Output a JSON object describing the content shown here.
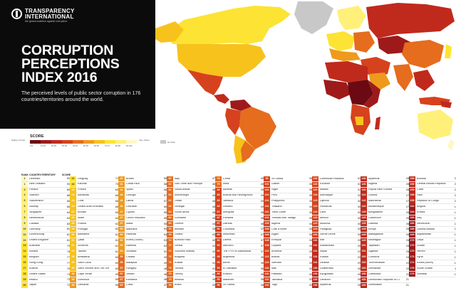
{
  "header": {
    "org_name": "TRANSPARENCY INTERNATIONAL",
    "org_name_line1": "TRANSPARENCY",
    "org_name_line2": "INTERNATIONAL",
    "org_tagline": "the global coalition against corruption",
    "title_line1": "CORRUPTION",
    "title_line2": "PERCEPTIONS",
    "title_line3": "INDEX 2016",
    "subtitle": "The perceived levels of public sector corruption in 176 countries/territories around the world."
  },
  "legend": {
    "title": "SCORE",
    "low_label": "Highly Corrupt",
    "high_label": "Very Clean",
    "nodata_label": "No data",
    "bins": [
      "0-9",
      "10-19",
      "20-29",
      "30-39",
      "40-49",
      "50-59",
      "60-69",
      "70-79",
      "80-89",
      "90-100"
    ],
    "colors": [
      "#6b0a12",
      "#9e1a1a",
      "#c02a1c",
      "#d6421d",
      "#e66c1e",
      "#ef9a1d",
      "#f7c21c",
      "#fde333",
      "#fff07a",
      "#fff8c4"
    ],
    "nodata_color": "#c8c8c8"
  },
  "table_headers": {
    "rank": "RANK",
    "country": "COUNTRY/TERRITORY",
    "score": "SCORE"
  },
  "columns": [
    [
      {
        "rank": "1",
        "country": "Denmark",
        "score": "90"
      },
      {
        "rank": "1",
        "country": "New Zealand",
        "score": "90"
      },
      {
        "rank": "3",
        "country": "Finland",
        "score": "89"
      },
      {
        "rank": "4",
        "country": "Sweden",
        "score": "88"
      },
      {
        "rank": "5",
        "country": "Switzerland",
        "score": "86"
      },
      {
        "rank": "6",
        "country": "Norway",
        "score": "85"
      },
      {
        "rank": "7",
        "country": "Singapore",
        "score": "84"
      },
      {
        "rank": "8",
        "country": "Netherlands",
        "score": "83"
      },
      {
        "rank": "9",
        "country": "Canada",
        "score": "82"
      },
      {
        "rank": "10",
        "country": "Germany",
        "score": "81"
      },
      {
        "rank": "10",
        "country": "Luxembourg",
        "score": "81"
      },
      {
        "rank": "10",
        "country": "United Kingdom",
        "score": "81"
      },
      {
        "rank": "13",
        "country": "Australia",
        "score": "79"
      },
      {
        "rank": "14",
        "country": "Iceland",
        "score": "78"
      },
      {
        "rank": "15",
        "country": "Belgium",
        "score": "77"
      },
      {
        "rank": "15",
        "country": "Hong Kong",
        "score": "77"
      },
      {
        "rank": "17",
        "country": "Austria",
        "score": "75"
      },
      {
        "rank": "18",
        "country": "United States",
        "score": "74"
      },
      {
        "rank": "19",
        "country": "Ireland",
        "score": "73"
      },
      {
        "rank": "20",
        "country": "Japan",
        "score": "72"
      }
    ],
    [
      {
        "rank": "21",
        "country": "Uruguay",
        "score": "71"
      },
      {
        "rank": "22",
        "country": "Estonia",
        "score": "70"
      },
      {
        "rank": "23",
        "country": "France",
        "score": "69"
      },
      {
        "rank": "24",
        "country": "Bahamas",
        "score": "66"
      },
      {
        "rank": "24",
        "country": "Chile",
        "score": "66"
      },
      {
        "rank": "24",
        "country": "United Arab Emirates",
        "score": "66"
      },
      {
        "rank": "27",
        "country": "Bhutan",
        "score": "65"
      },
      {
        "rank": "28",
        "country": "Israel",
        "score": "64"
      },
      {
        "rank": "29",
        "country": "Poland",
        "score": "62"
      },
      {
        "rank": "29",
        "country": "Portugal",
        "score": "62"
      },
      {
        "rank": "31",
        "country": "Barbados",
        "score": "61"
      },
      {
        "rank": "31",
        "country": "Qatar",
        "score": "61"
      },
      {
        "rank": "31",
        "country": "Slovenia",
        "score": "61"
      },
      {
        "rank": "31",
        "country": "Taiwan",
        "score": "61"
      },
      {
        "rank": "35",
        "country": "Botswana",
        "score": "60"
      },
      {
        "rank": "35",
        "country": "Saint Lucia",
        "score": "60"
      },
      {
        "rank": "35",
        "country": "Saint Vincent and The Grenadines",
        "score": "60"
      },
      {
        "rank": "38",
        "country": "Cape Verde",
        "score": "59"
      },
      {
        "rank": "38",
        "country": "Dominica",
        "score": "59"
      },
      {
        "rank": "38",
        "country": "Lithuania",
        "score": "59"
      }
    ],
    [
      {
        "rank": "41",
        "country": "Brunei",
        "score": "58"
      },
      {
        "rank": "41",
        "country": "Costa Rica",
        "score": "58"
      },
      {
        "rank": "41",
        "country": "Spain",
        "score": "58"
      },
      {
        "rank": "44",
        "country": "Georgia",
        "score": "57"
      },
      {
        "rank": "44",
        "country": "Latvia",
        "score": "57"
      },
      {
        "rank": "46",
        "country": "Grenada",
        "score": "56"
      },
      {
        "rank": "47",
        "country": "Cyprus",
        "score": "55"
      },
      {
        "rank": "47",
        "country": "Czech Republic",
        "score": "55"
      },
      {
        "rank": "47",
        "country": "Malta",
        "score": "55"
      },
      {
        "rank": "50",
        "country": "Mauritius",
        "score": "54"
      },
      {
        "rank": "50",
        "country": "Rwanda",
        "score": "54"
      },
      {
        "rank": "52",
        "country": "Korea (South)",
        "score": "53"
      },
      {
        "rank": "53",
        "country": "Namibia",
        "score": "52"
      },
      {
        "rank": "54",
        "country": "Slovakia",
        "score": "51"
      },
      {
        "rank": "55",
        "country": "Croatia",
        "score": "49"
      },
      {
        "rank": "55",
        "country": "Malaysia",
        "score": "49"
      },
      {
        "rank": "57",
        "country": "Hungary",
        "score": "48"
      },
      {
        "rank": "57",
        "country": "Jordan",
        "score": "48"
      },
      {
        "rank": "57",
        "country": "Romania",
        "score": "48"
      },
      {
        "rank": "60",
        "country": "Cuba",
        "score": "47"
      }
    ],
    [
      {
        "rank": "60",
        "country": "Italy",
        "score": "47"
      },
      {
        "rank": "62",
        "country": "Sao Tome and Principe",
        "score": "46"
      },
      {
        "rank": "62",
        "country": "Saudi Arabia",
        "score": "46"
      },
      {
        "rank": "64",
        "country": "Montenegro",
        "score": "45"
      },
      {
        "rank": "64",
        "country": "Oman",
        "score": "45"
      },
      {
        "rank": "64",
        "country": "Senegal",
        "score": "45"
      },
      {
        "rank": "64",
        "country": "South Africa",
        "score": "45"
      },
      {
        "rank": "64",
        "country": "Suriname",
        "score": "45"
      },
      {
        "rank": "69",
        "country": "Greece",
        "score": "44"
      },
      {
        "rank": "70",
        "country": "Bahrain",
        "score": "43"
      },
      {
        "rank": "70",
        "country": "Ghana",
        "score": "43"
      },
      {
        "rank": "72",
        "country": "Burkina Faso",
        "score": "42"
      },
      {
        "rank": "72",
        "country": "Serbia",
        "score": "42"
      },
      {
        "rank": "72",
        "country": "Solomon Islands",
        "score": "42"
      },
      {
        "rank": "75",
        "country": "Bulgaria",
        "score": "41"
      },
      {
        "rank": "75",
        "country": "Kuwait",
        "score": "41"
      },
      {
        "rank": "75",
        "country": "Tunisia",
        "score": "41"
      },
      {
        "rank": "75",
        "country": "Turkey",
        "score": "41"
      },
      {
        "rank": "79",
        "country": "Belarus",
        "score": "40"
      },
      {
        "rank": "79",
        "country": "Brazil",
        "score": "40"
      }
    ],
    [
      {
        "rank": "79",
        "country": "China",
        "score": "40"
      },
      {
        "rank": "79",
        "country": "India",
        "score": "40"
      },
      {
        "rank": "83",
        "country": "Albania",
        "score": "39"
      },
      {
        "rank": "83",
        "country": "Bosnia and Herzegovina",
        "score": "39"
      },
      {
        "rank": "83",
        "country": "Jamaica",
        "score": "39"
      },
      {
        "rank": "83",
        "country": "Lesotho",
        "score": "39"
      },
      {
        "rank": "87",
        "country": "Mongolia",
        "score": "38"
      },
      {
        "rank": "87",
        "country": "Panama",
        "score": "38"
      },
      {
        "rank": "87",
        "country": "Zambia",
        "score": "38"
      },
      {
        "rank": "90",
        "country": "Colombia",
        "score": "37"
      },
      {
        "rank": "90",
        "country": "Indonesia",
        "score": "37"
      },
      {
        "rank": "90",
        "country": "Liberia",
        "score": "37"
      },
      {
        "rank": "90",
        "country": "Morocco",
        "score": "37"
      },
      {
        "rank": "90",
        "country": "The FYR of Macedonia",
        "score": "37"
      },
      {
        "rank": "95",
        "country": "Argentina",
        "score": "36"
      },
      {
        "rank": "95",
        "country": "Benin",
        "score": "36"
      },
      {
        "rank": "95",
        "country": "El Salvador",
        "score": "36"
      },
      {
        "rank": "95",
        "country": "Kosovo",
        "score": "36"
      },
      {
        "rank": "95",
        "country": "Maldives",
        "score": "36"
      },
      {
        "rank": "95",
        "country": "Sri Lanka",
        "score": "36"
      }
    ],
    [
      {
        "rank": "95",
        "country": "Sri Lanka",
        "score": "36"
      },
      {
        "rank": "101",
        "country": "Gabon",
        "score": "35"
      },
      {
        "rank": "101",
        "country": "Niger",
        "score": "35"
      },
      {
        "rank": "101",
        "country": "Peru",
        "score": "35"
      },
      {
        "rank": "101",
        "country": "Philippines",
        "score": "35"
      },
      {
        "rank": "101",
        "country": "Thailand",
        "score": "35"
      },
      {
        "rank": "101",
        "country": "Timor-Leste",
        "score": "35"
      },
      {
        "rank": "101",
        "country": "Trinidad and Tobago",
        "score": "35"
      },
      {
        "rank": "108",
        "country": "Algeria",
        "score": "34"
      },
      {
        "rank": "108",
        "country": "Côte d'Ivoire",
        "score": "34"
      },
      {
        "rank": "108",
        "country": "Egypt",
        "score": "34"
      },
      {
        "rank": "108",
        "country": "Ethiopia",
        "score": "34"
      },
      {
        "rank": "108",
        "country": "Guyana",
        "score": "34"
      },
      {
        "rank": "113",
        "country": "Armenia",
        "score": "33"
      },
      {
        "rank": "113",
        "country": "Bolivia",
        "score": "33"
      },
      {
        "rank": "113",
        "country": "Vietnam",
        "score": "33"
      },
      {
        "rank": "116",
        "country": "Mali",
        "score": "32"
      },
      {
        "rank": "116",
        "country": "Pakistan",
        "score": "32"
      },
      {
        "rank": "116",
        "country": "Tanzania",
        "score": "32"
      },
      {
        "rank": "116",
        "country": "Togo",
        "score": "32"
      }
    ],
    [
      {
        "rank": "120",
        "country": "Dominican Republic",
        "score": "31"
      },
      {
        "rank": "120",
        "country": "Ecuador",
        "score": "31"
      },
      {
        "rank": "120",
        "country": "Malawi",
        "score": "31"
      },
      {
        "rank": "123",
        "country": "Azerbaijan",
        "score": "30"
      },
      {
        "rank": "123",
        "country": "Djibouti",
        "score": "30"
      },
      {
        "rank": "123",
        "country": "Honduras",
        "score": "30"
      },
      {
        "rank": "123",
        "country": "Laos",
        "score": "30"
      },
      {
        "rank": "123",
        "country": "Mexico",
        "score": "30"
      },
      {
        "rank": "123",
        "country": "Moldova",
        "score": "30"
      },
      {
        "rank": "123",
        "country": "Paraguay",
        "score": "30"
      },
      {
        "rank": "123",
        "country": "Sierra Leone",
        "score": "30"
      },
      {
        "rank": "131",
        "country": "Iran",
        "score": "29"
      },
      {
        "rank": "131",
        "country": "Kazakhstan",
        "score": "29"
      },
      {
        "rank": "131",
        "country": "Nepal",
        "score": "29"
      },
      {
        "rank": "131",
        "country": "Russia",
        "score": "29"
      },
      {
        "rank": "131",
        "country": "Ukraine",
        "score": "29"
      },
      {
        "rank": "136",
        "country": "Guatemala",
        "score": "28"
      },
      {
        "rank": "136",
        "country": "Kyrgyzstan",
        "score": "28"
      },
      {
        "rank": "136",
        "country": "Lebanon",
        "score": "28"
      },
      {
        "rank": "136",
        "country": "Myanmar",
        "score": "28"
      }
    ],
    [
      {
        "rank": "136",
        "country": "Myanmar",
        "score": "28"
      },
      {
        "rank": "136",
        "country": "Nigeria",
        "score": "28"
      },
      {
        "rank": "136",
        "country": "Papua New Guinea",
        "score": "28"
      },
      {
        "rank": "142",
        "country": "Guinea",
        "score": "27"
      },
      {
        "rank": "142",
        "country": "Mauritania",
        "score": "27"
      },
      {
        "rank": "142",
        "country": "Mozambique",
        "score": "27"
      },
      {
        "rank": "145",
        "country": "Bangladesh",
        "score": "26"
      },
      {
        "rank": "145",
        "country": "Cameroon",
        "score": "26"
      },
      {
        "rank": "145",
        "country": "Gambia",
        "score": "26"
      },
      {
        "rank": "145",
        "country": "Kenya",
        "score": "26"
      },
      {
        "rank": "145",
        "country": "Madagascar",
        "score": "26"
      },
      {
        "rank": "145",
        "country": "Nicaragua",
        "score": "26"
      },
      {
        "rank": "151",
        "country": "Tajikistan",
        "score": "25"
      },
      {
        "rank": "151",
        "country": "Uganda",
        "score": "25"
      },
      {
        "rank": "153",
        "country": "Comoros",
        "score": "24"
      },
      {
        "rank": "154",
        "country": "Turkmenistan",
        "score": "22"
      },
      {
        "rank": "154",
        "country": "Zimbabwe",
        "score": "22"
      },
      {
        "rank": "156",
        "country": "Cambodia",
        "score": "21"
      },
      {
        "rank": "156",
        "country": "Democratic Republic of Congo",
        "score": "21"
      },
      {
        "rank": "156",
        "country": "Uzbekistan",
        "score": "21"
      }
    ],
    [
      {
        "rank": "159",
        "country": "Burundi",
        "score": "20"
      },
      {
        "rank": "159",
        "country": "Central African Republic",
        "score": "20"
      },
      {
        "rank": "159",
        "country": "Chad",
        "score": "20"
      },
      {
        "rank": "159",
        "country": "Haiti",
        "score": "20"
      },
      {
        "rank": "159",
        "country": "Republic of Congo",
        "score": "20"
      },
      {
        "rank": "164",
        "country": "Angola",
        "score": "18"
      },
      {
        "rank": "164",
        "country": "Eritrea",
        "score": "18"
      },
      {
        "rank": "166",
        "country": "Iraq",
        "score": "17"
      },
      {
        "rank": "166",
        "country": "Venezuela",
        "score": "17"
      },
      {
        "rank": "168",
        "country": "Guinea-Bissau",
        "score": "16"
      },
      {
        "rank": "169",
        "country": "Afghanistan",
        "score": "15"
      },
      {
        "rank": "170",
        "country": "Libya",
        "score": "14"
      },
      {
        "rank": "170",
        "country": "Sudan",
        "score": "14"
      },
      {
        "rank": "170",
        "country": "Yemen",
        "score": "14"
      },
      {
        "rank": "173",
        "country": "Syria",
        "score": "13"
      },
      {
        "rank": "174",
        "country": "Korea (North)",
        "score": "12"
      },
      {
        "rank": "175",
        "country": "South Sudan",
        "score": "11"
      },
      {
        "rank": "176",
        "country": "Somalia",
        "score": "10"
      }
    ]
  ]
}
